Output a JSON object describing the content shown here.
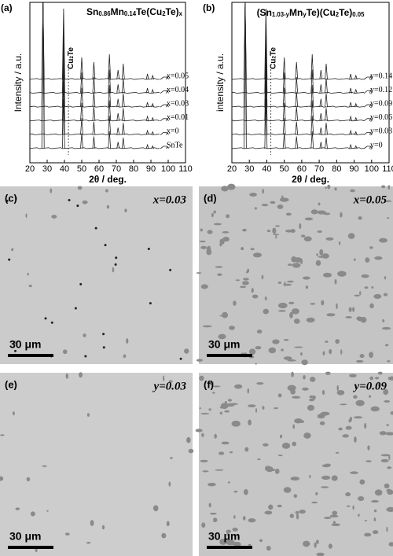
{
  "panels": [
    {
      "label": "(a)",
      "title_parts": [
        "Sn",
        "0.86",
        "Mn",
        "0.14",
        "Te(Cu",
        "2",
        "Te)",
        "x"
      ],
      "y_axis_label": "Intensity / a.u.",
      "x_axis_label": "2θ / deg.",
      "xticks": [
        20,
        30,
        40,
        50,
        60,
        70,
        80,
        90,
        100,
        110
      ],
      "marker_parts": [
        "Cu",
        "2",
        "Te"
      ],
      "trace_labels": [
        "x=0.05",
        "x=0.04",
        "x=0.03",
        "x=0.01",
        "x=0",
        "SnTe"
      ]
    },
    {
      "label": "(b)",
      "title_parts": [
        "(Sn",
        "1.03-y",
        "Mn",
        "y",
        "Te)(Cu",
        "2",
        "Te)",
        "0.05"
      ],
      "y_axis_label": "intensity / a.u.",
      "x_axis_label": "2θ / deg.",
      "xticks": [
        20,
        30,
        40,
        50,
        60,
        70,
        80,
        90,
        100,
        110
      ],
      "marker_parts": [
        "Cu",
        "2",
        "Te"
      ],
      "trace_labels": [
        "y=0.14",
        "y=0.12",
        "y=0.09",
        "y=0.06",
        "y=0.03",
        "y=0"
      ]
    }
  ],
  "micrographs": [
    {
      "label": "(c)",
      "composition": "x=0.03",
      "scale_bar": "30 μm"
    },
    {
      "label": "(d)",
      "composition": "x=0.05",
      "scale_bar": "30 μm"
    },
    {
      "label": "(e)",
      "composition": "y=0.03",
      "scale_bar": "30 μm"
    },
    {
      "label": "(f)",
      "composition": "y=0.09",
      "scale_bar": "30 μm"
    }
  ]
}
